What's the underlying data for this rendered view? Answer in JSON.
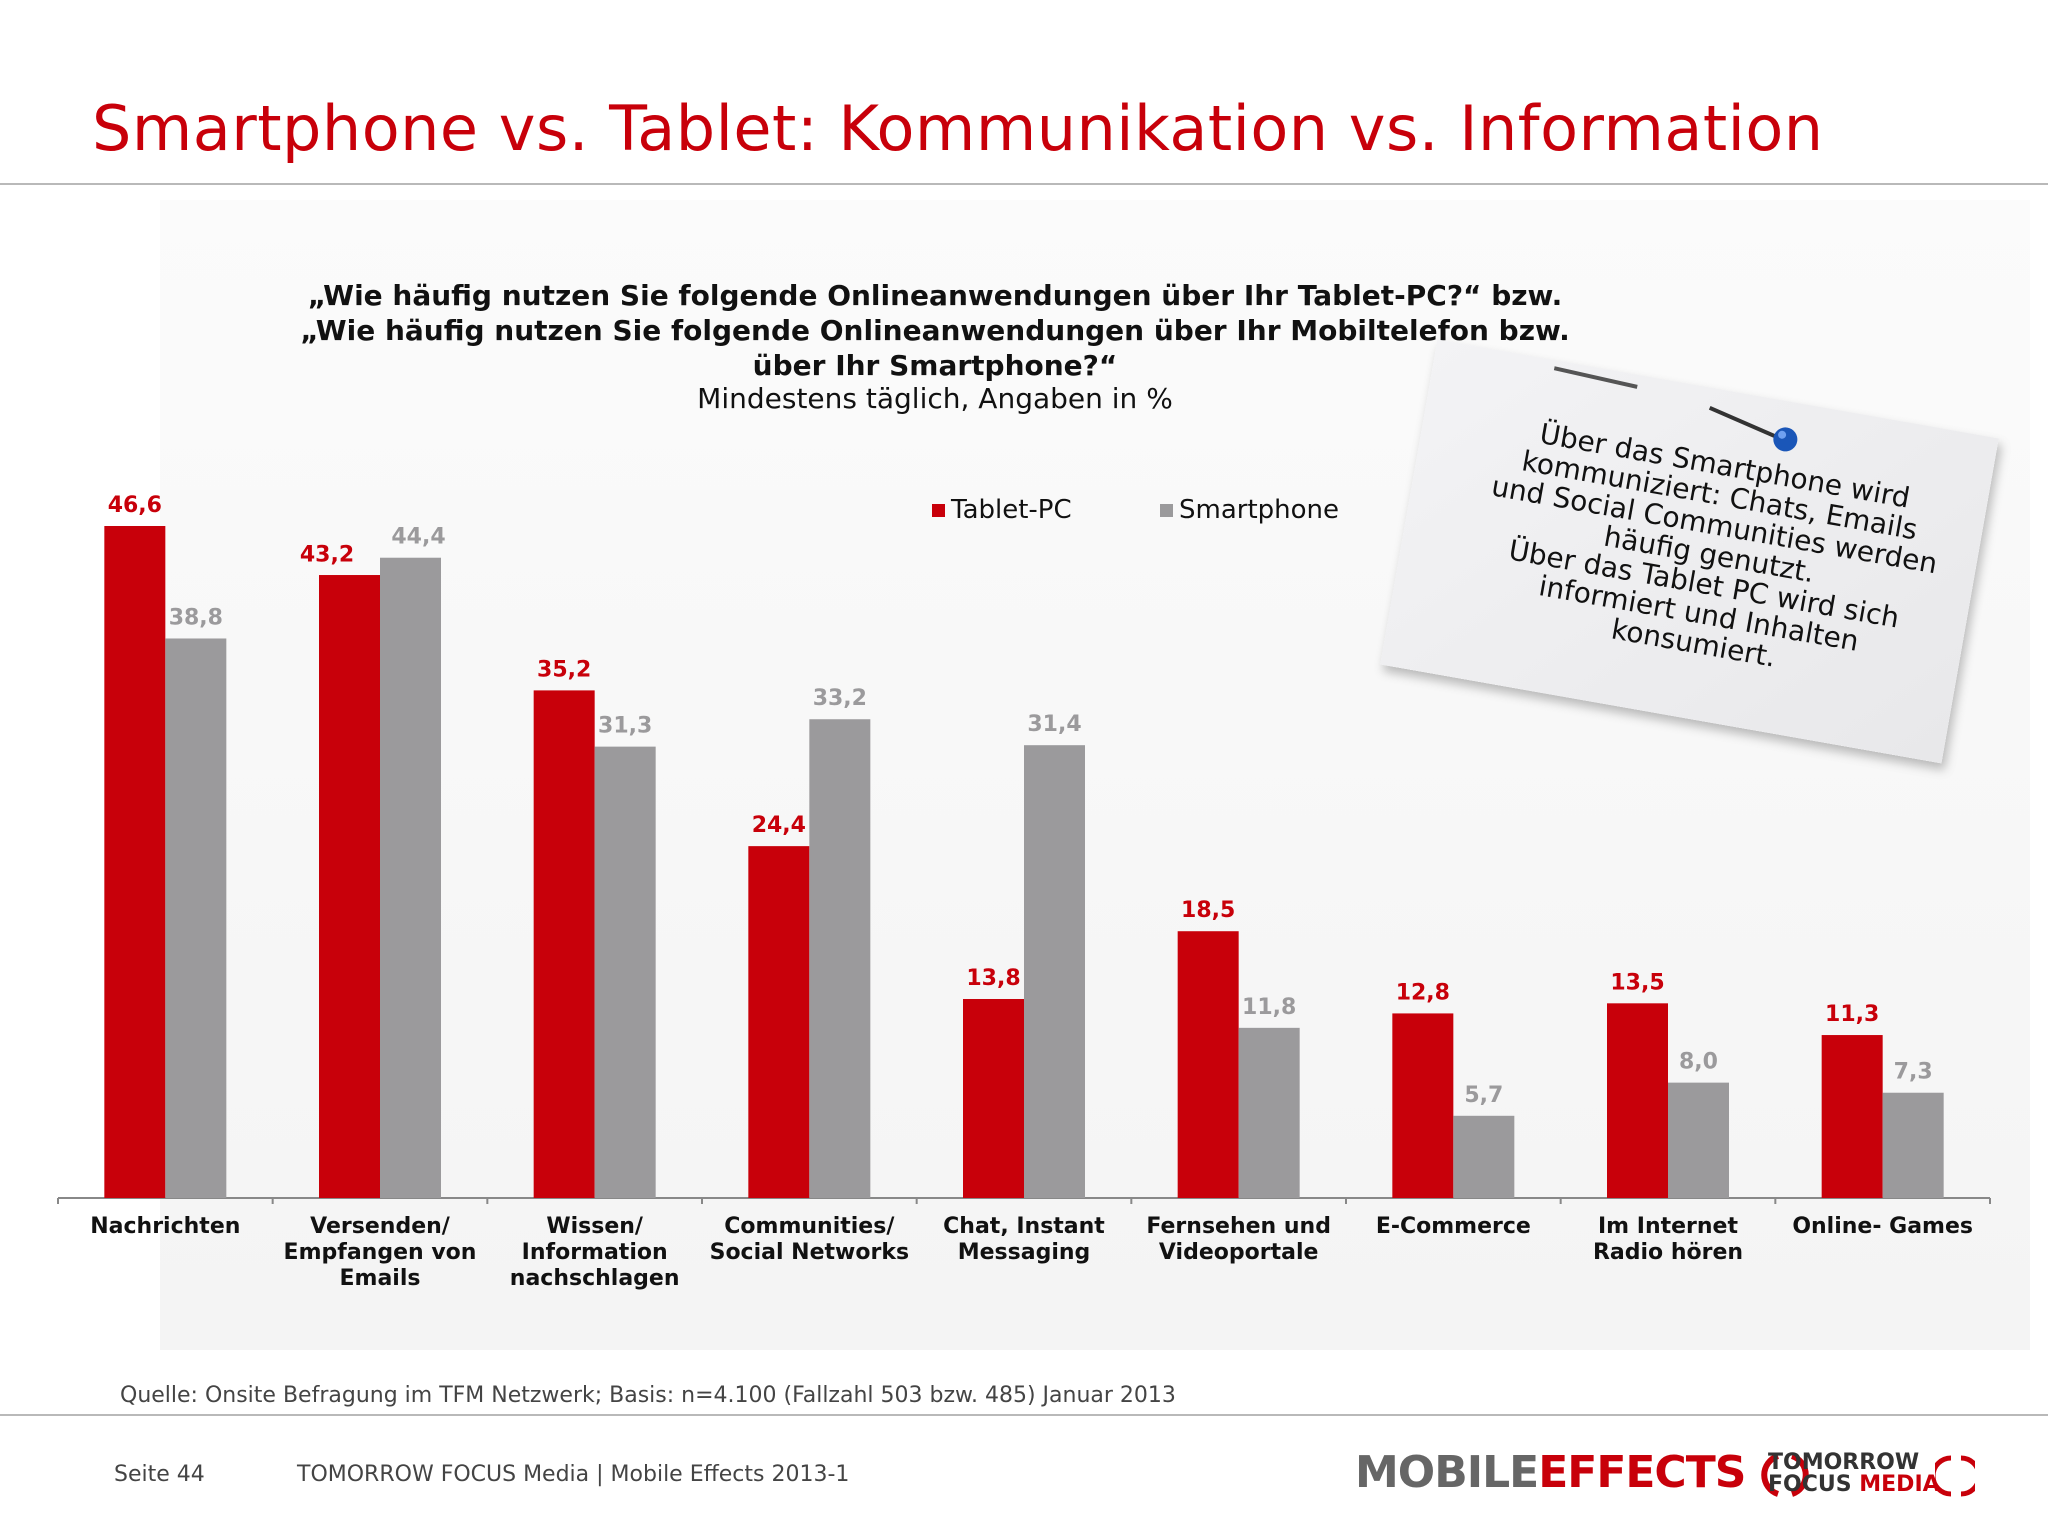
{
  "title": "Smartphone vs. Tablet: Kommunikation vs. Information",
  "question_lines": [
    "„Wie häufig nutzen Sie folgende Onlineanwendungen über Ihr Tablet-PC?“ bzw.",
    "„Wie häufig nutzen Sie folgende Onlineanwendungen über Ihr Mobiltelefon bzw.",
    "über Ihr Smartphone?“"
  ],
  "subtitle": "Mindestens täglich, Angaben in %",
  "note_lines": [
    "Über das Smartphone wird",
    "kommuniziert: Chats, Emails",
    "und Social Communities werden",
    "häufig genutzt.",
    "Über das Tablet PC wird sich",
    "informiert und Inhalten",
    "konsumiert."
  ],
  "source": "Quelle: Onsite Befragung im TFM Netzwerk; Basis: n=4.100 (Fallzahl 503 bzw. 485) Januar 2013",
  "footer": {
    "page": "Seite 44",
    "company": "TOMORROW FOCUS Media  |  Mobile Effects 2013-1"
  },
  "logos": {
    "mobile": "MOBILE",
    "effects": "EFFECTS",
    "tomorrow": "TOMORROW",
    "focus": "FOCUS",
    "media": "MEDIA"
  },
  "colors": {
    "tablet": "#c8000a",
    "smartphone": "#9b9a9c",
    "title": "#c8000a"
  },
  "chart_data": {
    "type": "bar",
    "categories": [
      "Nachrichten",
      "Versenden/ Empfangen von Emails",
      "Wissen/ Information nachschlagen",
      "Communities/ Social Networks",
      "Chat, Instant Messaging",
      "Fernsehen und Videoportale",
      "E-Commerce",
      "Im Internet Radio hören",
      "Online- Games"
    ],
    "category_lines": [
      [
        "Nachrichten"
      ],
      [
        "Versenden/",
        "Empfangen von",
        "Emails"
      ],
      [
        "Wissen/",
        "Information",
        "nachschlagen"
      ],
      [
        "Communities/",
        "Social Networks"
      ],
      [
        "Chat, Instant",
        "Messaging"
      ],
      [
        "Fernsehen und",
        "Videoportale"
      ],
      [
        "E-Commerce"
      ],
      [
        "Im Internet",
        "Radio hören"
      ],
      [
        "Online- Games"
      ]
    ],
    "series": [
      {
        "name": "Tablet-PC",
        "values": [
          46.6,
          43.2,
          35.2,
          24.4,
          13.8,
          18.5,
          12.8,
          13.5,
          11.3
        ],
        "labels": [
          "46,6",
          "43,2",
          "35,2",
          "24,4",
          "13,8",
          "18,5",
          "12,8",
          "13,5",
          "11,3"
        ]
      },
      {
        "name": "Smartphone",
        "values": [
          38.8,
          44.4,
          31.3,
          33.2,
          31.4,
          11.8,
          5.7,
          8.0,
          7.3
        ],
        "labels": [
          "38,8",
          "44,4",
          "31,3",
          "33,2",
          "31,4",
          "11,8",
          "5,7",
          "8,0",
          "7,3"
        ]
      }
    ],
    "ylim": [
      0,
      50
    ],
    "grid": false,
    "legend": "top-center"
  }
}
